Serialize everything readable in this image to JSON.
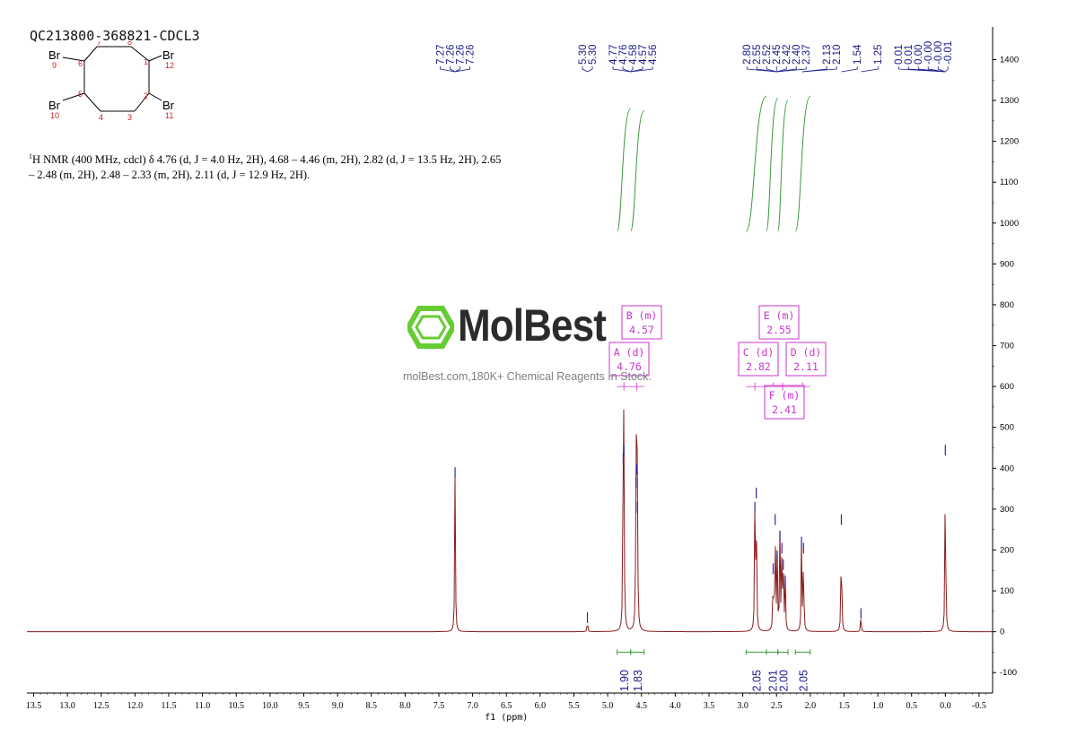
{
  "sample_id": "QC213800-368821-CDCL3",
  "description": {
    "line1": "H NMR (400 MHz, cdcl) δ 4.76 (d, J = 4.0 Hz, 2H), 4.68 – 4.46 (m, 2H), 2.82 (d, J = 13.5 Hz, 2H), 2.65",
    "line2": "– 2.48 (m, 2H), 2.48 – 2.33 (m, 2H), 2.11 (d, J = 12.9 Hz, 2H)."
  },
  "molecule": {
    "atoms": [
      "Br",
      "Br",
      "Br",
      "Br"
    ],
    "atom_numbers": [
      "1",
      "2",
      "3",
      "4",
      "5",
      "6",
      "7",
      "8",
      "9",
      "10",
      "11",
      "12"
    ]
  },
  "watermark": {
    "brand": "MolBest",
    "url_text": "molBest.com,180K+ Chemical Reagents In Stock."
  },
  "colors": {
    "spectrum": "#8b1a1a",
    "integral": "#3a9a3a",
    "multiplet_box": "#cc33cc",
    "peak_label": "#1a1a8b",
    "logo_green": "#66cc33"
  },
  "chart_data": {
    "type": "line",
    "title": "QC213800-368821-CDCL3",
    "xlabel": "f1 (ppm)",
    "ylabel": "",
    "xlim": [
      13.6,
      -0.7
    ],
    "ylim": [
      -150,
      1480
    ],
    "x_reversed": true,
    "x_ticks": [
      "13.5",
      "13.0",
      "12.5",
      "12.0",
      "11.5",
      "11.0",
      "10.5",
      "10.0",
      "9.5",
      "9.0",
      "8.5",
      "8.0",
      "7.5",
      "7.0",
      "6.5",
      "6.0",
      "5.5",
      "5.0",
      "4.5",
      "4.0",
      "3.5",
      "3.0",
      "2.5",
      "2.0",
      "1.5",
      "1.0",
      "0.5",
      "0.0",
      "-0.5"
    ],
    "y_ticks": [
      "1400",
      "1300",
      "1200",
      "1100",
      "1000",
      "900",
      "800",
      "700",
      "600",
      "500",
      "400",
      "300",
      "200",
      "100",
      "0",
      "-100"
    ],
    "peaks": [
      {
        "ppm": 7.26,
        "height": 385
      },
      {
        "ppm": 5.3,
        "height": 30
      },
      {
        "ppm": 4.77,
        "height": 420
      },
      {
        "ppm": 4.76,
        "height": 438
      },
      {
        "ppm": 4.58,
        "height": 360
      },
      {
        "ppm": 4.57,
        "height": 392
      },
      {
        "ppm": 4.56,
        "height": 300
      },
      {
        "ppm": 2.82,
        "height": 300
      },
      {
        "ppm": 2.8,
        "height": 335
      },
      {
        "ppm": 2.55,
        "height": 150
      },
      {
        "ppm": 2.52,
        "height": 270
      },
      {
        "ppm": 2.49,
        "height": 180
      },
      {
        "ppm": 2.45,
        "height": 230
      },
      {
        "ppm": 2.42,
        "height": 200
      },
      {
        "ppm": 2.4,
        "height": 160
      },
      {
        "ppm": 2.37,
        "height": 120
      },
      {
        "ppm": 2.13,
        "height": 215
      },
      {
        "ppm": 2.1,
        "height": 200
      },
      {
        "ppm": 1.54,
        "height": 270
      },
      {
        "ppm": 1.25,
        "height": 40
      },
      {
        "ppm": 0.0,
        "height": 440
      }
    ],
    "peak_label_groups": [
      {
        "labels": [
          "7.27",
          "7.26",
          "7.26",
          "7.26"
        ],
        "ppm": 7.26
      },
      {
        "labels": [
          "5.30",
          "5.30"
        ],
        "ppm": 5.3
      },
      {
        "labels": [
          "4.77",
          "4.76",
          "4.58",
          "4.57",
          "4.56"
        ],
        "ppm": 4.66
      },
      {
        "labels": [
          "2.80",
          "2.55",
          "2.52",
          "2.45",
          "2.42",
          "2.40",
          "2.37"
        ],
        "ppm": 2.5
      },
      {
        "labels": [
          "2.13",
          "2.10"
        ],
        "ppm": 2.12
      },
      {
        "labels": [
          "1.54"
        ],
        "ppm": 1.54
      },
      {
        "labels": [
          "1.25"
        ],
        "ppm": 1.25
      },
      {
        "labels": [
          "0.01",
          "0.01",
          "0.00",
          "-0.00",
          "-0.00",
          "-0.01"
        ],
        "ppm": 0.0
      }
    ],
    "integrals": [
      {
        "from": 4.86,
        "to": 4.66,
        "value": "1.90",
        "curve_top": 1280
      },
      {
        "from": 4.66,
        "to": 4.46,
        "value": "1.83",
        "curve_top": 1275
      },
      {
        "from": 2.95,
        "to": 2.65,
        "value": "2.05",
        "curve_top": 1310
      },
      {
        "from": 2.65,
        "to": 2.48,
        "value": "2.01",
        "curve_top": 1305
      },
      {
        "from": 2.48,
        "to": 2.33,
        "value": "2.00",
        "curve_top": 1300
      },
      {
        "from": 2.22,
        "to": 2.0,
        "value": "2.05",
        "curve_top": 1310
      }
    ],
    "multiplets": [
      {
        "id": "A",
        "type": "d",
        "shift": "4.76"
      },
      {
        "id": "B",
        "type": "m",
        "shift": "4.57"
      },
      {
        "id": "C",
        "type": "d",
        "shift": "2.82"
      },
      {
        "id": "D",
        "type": "d",
        "shift": "2.11"
      },
      {
        "id": "E",
        "type": "m",
        "shift": "2.55"
      },
      {
        "id": "F",
        "type": "m",
        "shift": "2.41"
      }
    ]
  }
}
